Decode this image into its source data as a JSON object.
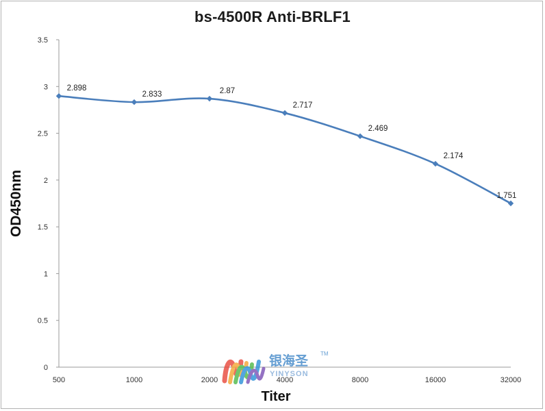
{
  "chart_data": {
    "type": "line",
    "title": "bs-4500R Anti-BRLF1",
    "xlabel": "Titer",
    "ylabel": "OD450nm",
    "categories": [
      "500",
      "1000",
      "2000",
      "4000",
      "8000",
      "16000",
      "32000"
    ],
    "series": [
      {
        "values": [
          2.898,
          2.833,
          2.87,
          2.717,
          2.469,
          2.174,
          1.751
        ],
        "data_labels": [
          "2.898",
          "2.833",
          "2.87",
          "2.717",
          "2.469",
          "2.174",
          "1.751"
        ]
      }
    ],
    "ylim": [
      0,
      3.5
    ],
    "yticks": [
      "0",
      "0.5",
      "1",
      "1.5",
      "2",
      "2.5",
      "3",
      "3.5"
    ],
    "grid": false,
    "legend": "none",
    "line_color": "#4a7ebb",
    "marker": "diamond"
  },
  "watermark": {
    "brand_cn": "银海圣",
    "trademark": "TM",
    "brand_en": "YINYSON",
    "logo_colors": [
      "#e8473a",
      "#f3a531",
      "#4db848",
      "#2a8fd8",
      "#7a4fb5"
    ]
  }
}
